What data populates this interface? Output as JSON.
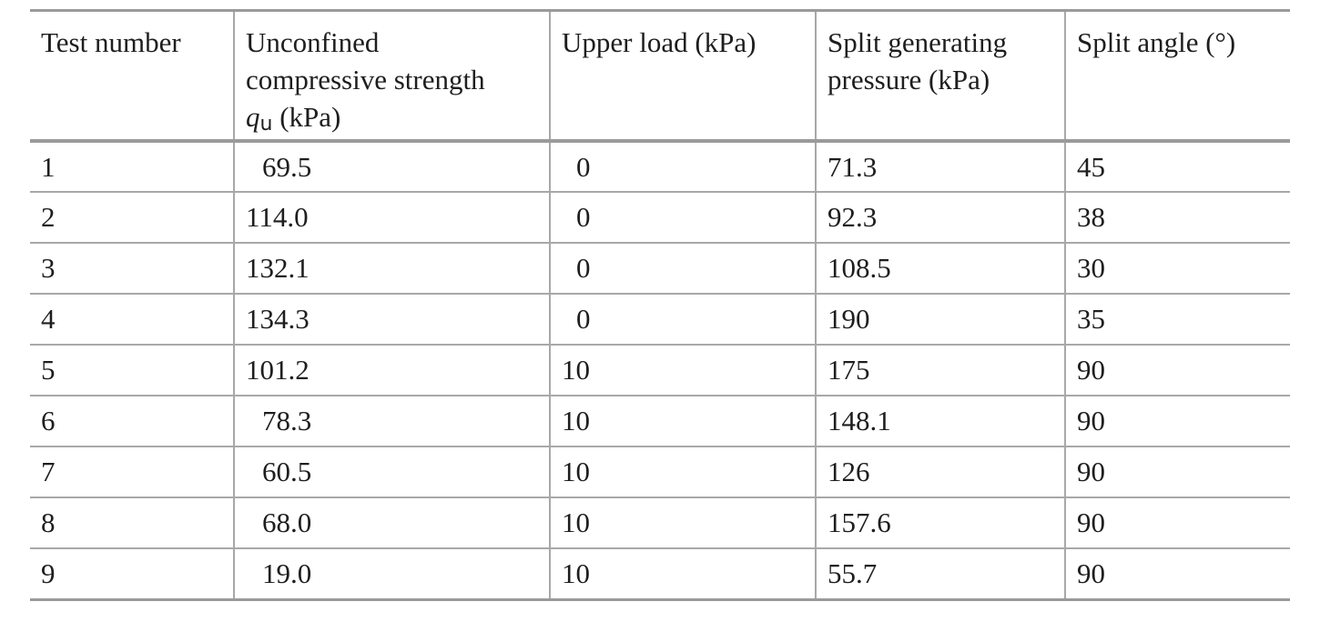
{
  "table": {
    "headers": [
      {
        "text": "Test number"
      },
      {
        "line1": "Unconfined",
        "line2": "compressive strength",
        "symbol": "q",
        "subscript": "u",
        "unit": " (kPa)"
      },
      {
        "text": "Upper load (kPa)"
      },
      {
        "line1": "Split generating",
        "line2": "pressure (kPa)"
      },
      {
        "text": "Split angle (°)"
      }
    ],
    "rows": [
      [
        "1",
        "69.5",
        "0",
        "71.3",
        "45"
      ],
      [
        "2",
        "114.0",
        "0",
        "92.3",
        "38"
      ],
      [
        "3",
        "132.1",
        "0",
        "108.5",
        "30"
      ],
      [
        "4",
        "134.3",
        "0",
        "190",
        "35"
      ],
      [
        "5",
        "101.2",
        "10",
        "175",
        "90"
      ],
      [
        "6",
        "78.3",
        "10",
        "148.1",
        "90"
      ],
      [
        "7",
        "60.5",
        "10",
        "126",
        "90"
      ],
      [
        "8",
        "68.0",
        "10",
        "157.6",
        "90"
      ],
      [
        "9",
        "19.0",
        "10",
        "55.7",
        "90"
      ]
    ]
  }
}
